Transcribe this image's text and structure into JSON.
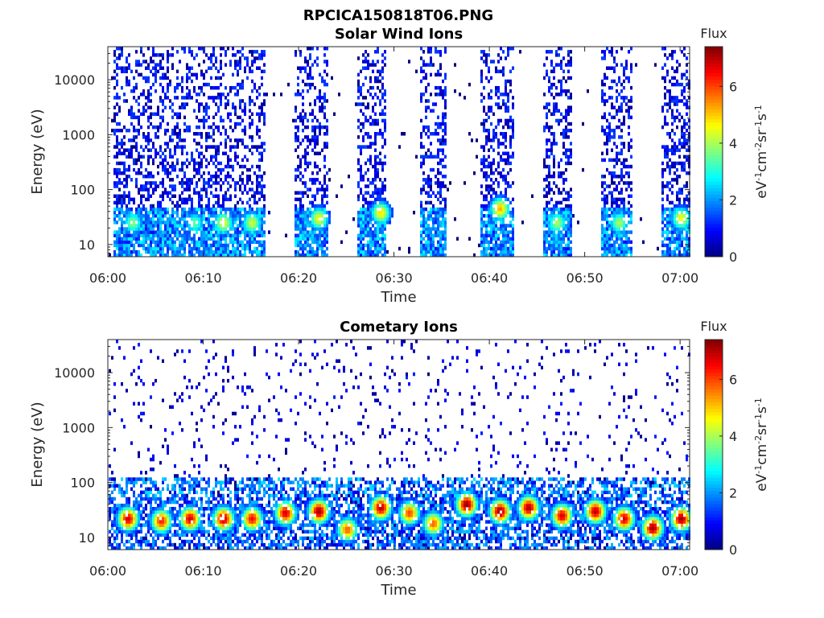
{
  "figure_title": "RPCICA150818T06.PNG",
  "chart_data": [
    {
      "type": "heatmap",
      "title": "Solar Wind Ions",
      "xlabel": "Time",
      "ylabel": "Energy (eV)",
      "x_ticks": [
        "06:00",
        "06:10",
        "06:20",
        "06:30",
        "06:40",
        "06:50",
        "07:00"
      ],
      "x_range": [
        "06:00",
        "07:01"
      ],
      "y_scale": "log",
      "y_ticks": [
        10,
        100,
        1000,
        10000
      ],
      "y_tick_labels": [
        "10",
        "100",
        "1000",
        "10000"
      ],
      "y_range": [
        6,
        40000
      ],
      "colorbar": {
        "title": "Flux",
        "label": "eV-1cm-2sr-1s-1",
        "range": [
          0,
          7.4
        ],
        "ticks": [
          0,
          2,
          4,
          6
        ],
        "tick_labels": [
          "0",
          "2",
          "4",
          "6"
        ],
        "colormap": "jet"
      },
      "bursts": [
        {
          "start": "06:00.5",
          "end": "06:16.5"
        },
        {
          "start": "06:19.5",
          "end": "06:23.0"
        },
        {
          "start": "06:26.0",
          "end": "06:29.0"
        },
        {
          "start": "06:32.5",
          "end": "06:35.5"
        },
        {
          "start": "06:39.0",
          "end": "06:42.5"
        },
        {
          "start": "06:45.5",
          "end": "06:48.5"
        },
        {
          "start": "06:51.5",
          "end": "06:55.0"
        },
        {
          "start": "06:58.0",
          "end": "07:01.0"
        }
      ],
      "peak_flux": [
        {
          "time": "06:02.5",
          "energy": 25,
          "value": 3.8
        },
        {
          "time": "06:09.0",
          "energy": 25,
          "value": 3.5
        },
        {
          "time": "06:12.0",
          "energy": 25,
          "value": 4.5
        },
        {
          "time": "06:15.0",
          "energy": 25,
          "value": 4.3
        },
        {
          "time": "06:22.0",
          "energy": 30,
          "value": 4.6
        },
        {
          "time": "06:28.5",
          "energy": 38,
          "value": 4.8
        },
        {
          "time": "06:41.0",
          "energy": 45,
          "value": 5.2
        },
        {
          "time": "06:47.0",
          "energy": 25,
          "value": 4.0
        },
        {
          "time": "06:53.5",
          "energy": 25,
          "value": 4.0
        },
        {
          "time": "07:00.0",
          "energy": 30,
          "value": 4.6
        }
      ]
    },
    {
      "type": "heatmap",
      "title": "Cometary Ions",
      "xlabel": "Time",
      "ylabel": "Energy (eV)",
      "x_ticks": [
        "06:00",
        "06:10",
        "06:20",
        "06:30",
        "06:40",
        "06:50",
        "07:00"
      ],
      "x_range": [
        "06:00",
        "07:01"
      ],
      "y_scale": "log",
      "y_ticks": [
        10,
        100,
        1000,
        10000
      ],
      "y_tick_labels": [
        "10",
        "100",
        "1000",
        "10000"
      ],
      "y_range": [
        6,
        40000
      ],
      "colorbar": {
        "title": "Flux",
        "label": "eV-1cm-2sr-1s-1",
        "range": [
          0,
          7.4
        ],
        "ticks": [
          0,
          2,
          4,
          6
        ],
        "tick_labels": [
          "0",
          "2",
          "4",
          "6"
        ],
        "colormap": "jet"
      },
      "peak_flux": [
        {
          "time": "06:02.0",
          "energy": 22,
          "value": 6.8
        },
        {
          "time": "06:05.5",
          "energy": 20,
          "value": 6.3
        },
        {
          "time": "06:08.5",
          "energy": 22,
          "value": 6.8
        },
        {
          "time": "06:12.0",
          "energy": 22,
          "value": 7.0
        },
        {
          "time": "06:15.0",
          "energy": 22,
          "value": 6.5
        },
        {
          "time": "06:18.5",
          "energy": 28,
          "value": 6.8
        },
        {
          "time": "06:22.0",
          "energy": 30,
          "value": 7.2
        },
        {
          "time": "06:25.0",
          "energy": 14,
          "value": 5.8
        },
        {
          "time": "06:28.5",
          "energy": 35,
          "value": 7.0
        },
        {
          "time": "06:31.5",
          "energy": 28,
          "value": 6.0
        },
        {
          "time": "06:34.0",
          "energy": 18,
          "value": 5.8
        },
        {
          "time": "06:37.5",
          "energy": 40,
          "value": 7.3
        },
        {
          "time": "06:41.0",
          "energy": 30,
          "value": 7.3
        },
        {
          "time": "06:44.0",
          "energy": 35,
          "value": 7.1
        },
        {
          "time": "06:47.5",
          "energy": 25,
          "value": 6.8
        },
        {
          "time": "06:51.0",
          "energy": 30,
          "value": 7.0
        },
        {
          "time": "06:54.0",
          "energy": 22,
          "value": 6.8
        },
        {
          "time": "06:57.0",
          "energy": 15,
          "value": 7.2
        },
        {
          "time": "07:00.0",
          "energy": 22,
          "value": 7.2
        }
      ]
    }
  ]
}
